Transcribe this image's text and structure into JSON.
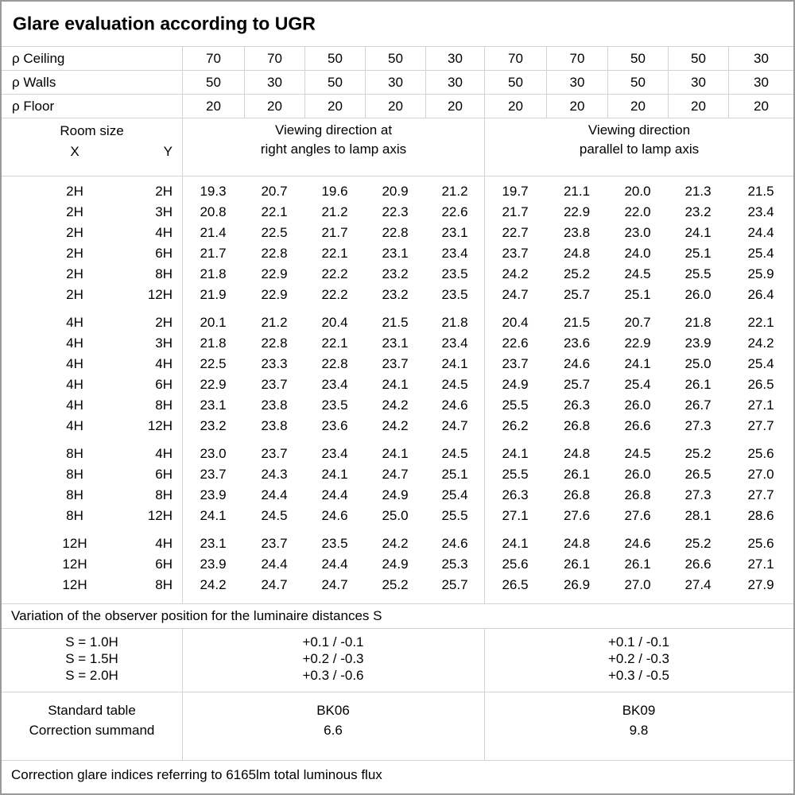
{
  "title": "Glare evaluation according to UGR",
  "reflectance": {
    "rows": [
      {
        "label": "ρ Ceiling",
        "values": [
          "70",
          "70",
          "50",
          "50",
          "30",
          "70",
          "70",
          "50",
          "50",
          "30"
        ]
      },
      {
        "label": "ρ Walls",
        "values": [
          "50",
          "30",
          "50",
          "30",
          "30",
          "50",
          "30",
          "50",
          "30",
          "30"
        ]
      },
      {
        "label": "ρ Floor",
        "values": [
          "20",
          "20",
          "20",
          "20",
          "20",
          "20",
          "20",
          "20",
          "20",
          "20"
        ]
      }
    ]
  },
  "header": {
    "room_size": "Room size",
    "x": "X",
    "y": "Y",
    "section1": "Viewing direction at\nright angles to lamp axis",
    "section2": "Viewing direction\nparallel to lamp axis"
  },
  "blocks": [
    {
      "rows": [
        {
          "x": "2H",
          "y": "2H",
          "values": [
            "19.3",
            "20.7",
            "19.6",
            "20.9",
            "21.2",
            "19.7",
            "21.1",
            "20.0",
            "21.3",
            "21.5"
          ]
        },
        {
          "x": "2H",
          "y": "3H",
          "values": [
            "20.8",
            "22.1",
            "21.2",
            "22.3",
            "22.6",
            "21.7",
            "22.9",
            "22.0",
            "23.2",
            "23.4"
          ]
        },
        {
          "x": "2H",
          "y": "4H",
          "values": [
            "21.4",
            "22.5",
            "21.7",
            "22.8",
            "23.1",
            "22.7",
            "23.8",
            "23.0",
            "24.1",
            "24.4"
          ]
        },
        {
          "x": "2H",
          "y": "6H",
          "values": [
            "21.7",
            "22.8",
            "22.1",
            "23.1",
            "23.4",
            "23.7",
            "24.8",
            "24.0",
            "25.1",
            "25.4"
          ]
        },
        {
          "x": "2H",
          "y": "8H",
          "values": [
            "21.8",
            "22.9",
            "22.2",
            "23.2",
            "23.5",
            "24.2",
            "25.2",
            "24.5",
            "25.5",
            "25.9"
          ]
        },
        {
          "x": "2H",
          "y": "12H",
          "values": [
            "21.9",
            "22.9",
            "22.2",
            "23.2",
            "23.5",
            "24.7",
            "25.7",
            "25.1",
            "26.0",
            "26.4"
          ]
        }
      ]
    },
    {
      "rows": [
        {
          "x": "4H",
          "y": "2H",
          "values": [
            "20.1",
            "21.2",
            "20.4",
            "21.5",
            "21.8",
            "20.4",
            "21.5",
            "20.7",
            "21.8",
            "22.1"
          ]
        },
        {
          "x": "4H",
          "y": "3H",
          "values": [
            "21.8",
            "22.8",
            "22.1",
            "23.1",
            "23.4",
            "22.6",
            "23.6",
            "22.9",
            "23.9",
            "24.2"
          ]
        },
        {
          "x": "4H",
          "y": "4H",
          "values": [
            "22.5",
            "23.3",
            "22.8",
            "23.7",
            "24.1",
            "23.7",
            "24.6",
            "24.1",
            "25.0",
            "25.4"
          ]
        },
        {
          "x": "4H",
          "y": "6H",
          "values": [
            "22.9",
            "23.7",
            "23.4",
            "24.1",
            "24.5",
            "24.9",
            "25.7",
            "25.4",
            "26.1",
            "26.5"
          ]
        },
        {
          "x": "4H",
          "y": "8H",
          "values": [
            "23.1",
            "23.8",
            "23.5",
            "24.2",
            "24.6",
            "25.5",
            "26.3",
            "26.0",
            "26.7",
            "27.1"
          ]
        },
        {
          "x": "4H",
          "y": "12H",
          "values": [
            "23.2",
            "23.8",
            "23.6",
            "24.2",
            "24.7",
            "26.2",
            "26.8",
            "26.6",
            "27.3",
            "27.7"
          ]
        }
      ]
    },
    {
      "rows": [
        {
          "x": "8H",
          "y": "4H",
          "values": [
            "23.0",
            "23.7",
            "23.4",
            "24.1",
            "24.5",
            "24.1",
            "24.8",
            "24.5",
            "25.2",
            "25.6"
          ]
        },
        {
          "x": "8H",
          "y": "6H",
          "values": [
            "23.7",
            "24.3",
            "24.1",
            "24.7",
            "25.1",
            "25.5",
            "26.1",
            "26.0",
            "26.5",
            "27.0"
          ]
        },
        {
          "x": "8H",
          "y": "8H",
          "values": [
            "23.9",
            "24.4",
            "24.4",
            "24.9",
            "25.4",
            "26.3",
            "26.8",
            "26.8",
            "27.3",
            "27.7"
          ]
        },
        {
          "x": "8H",
          "y": "12H",
          "values": [
            "24.1",
            "24.5",
            "24.6",
            "25.0",
            "25.5",
            "27.1",
            "27.6",
            "27.6",
            "28.1",
            "28.6"
          ]
        }
      ]
    },
    {
      "rows": [
        {
          "x": "12H",
          "y": "4H",
          "values": [
            "23.1",
            "23.7",
            "23.5",
            "24.2",
            "24.6",
            "24.1",
            "24.8",
            "24.6",
            "25.2",
            "25.6"
          ]
        },
        {
          "x": "12H",
          "y": "6H",
          "values": [
            "23.9",
            "24.4",
            "24.4",
            "24.9",
            "25.3",
            "25.6",
            "26.1",
            "26.1",
            "26.6",
            "27.1"
          ]
        },
        {
          "x": "12H",
          "y": "8H",
          "values": [
            "24.2",
            "24.7",
            "24.7",
            "25.2",
            "25.7",
            "26.5",
            "26.9",
            "27.0",
            "27.4",
            "27.9"
          ]
        }
      ]
    }
  ],
  "variation_note": "Variation of the observer position for the luminaire distances S",
  "variation": {
    "rows": [
      {
        "label": "S = 1.0H",
        "left": "+0.1 / -0.1",
        "right": "+0.1 / -0.1"
      },
      {
        "label": "S = 1.5H",
        "left": "+0.2 / -0.3",
        "right": "+0.2 / -0.3"
      },
      {
        "label": "S = 2.0H",
        "left": "+0.3 / -0.6",
        "right": "+0.3 / -0.5"
      }
    ]
  },
  "standard": {
    "rows": [
      {
        "label": "Standard table",
        "left": "BK06",
        "right": "BK09"
      },
      {
        "label": "Correction summand",
        "left": "6.6",
        "right": "9.8"
      }
    ]
  },
  "footer_note": "Correction glare indices referring to 6165lm total luminous flux",
  "colors": {
    "grid_line": "#d3d3d3",
    "outer_border": "#9a9a9a",
    "text": "#000000",
    "background": "#ffffff"
  }
}
